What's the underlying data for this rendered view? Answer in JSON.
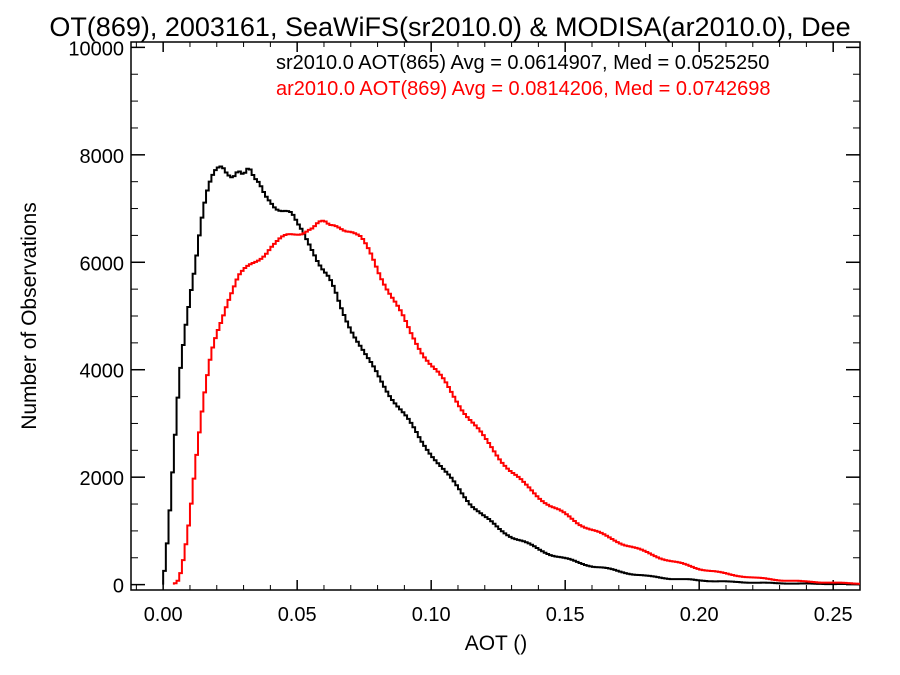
{
  "chart_data": {
    "type": "line",
    "title": "OT(869), 2003161, SeaWiFS(sr2010.0) & MODISA(ar2010.0), Dee",
    "xlabel": "AOT ()",
    "ylabel": "Number of Observations",
    "xlim": [
      -0.012,
      0.26
    ],
    "ylim": [
      -100,
      10100
    ],
    "x_ticks": [
      0.0,
      0.05,
      0.1,
      0.15,
      0.2,
      0.25
    ],
    "x_tick_labels": [
      "0.00",
      "0.05",
      "0.10",
      "0.15",
      "0.20",
      "0.25"
    ],
    "y_ticks": [
      0,
      2000,
      4000,
      6000,
      8000,
      10000
    ],
    "y_tick_labels": [
      "0",
      "2000",
      "4000",
      "6000",
      "8000",
      "10000"
    ],
    "grid": false,
    "series": [
      {
        "name": "sr2010.0 AOT(865)",
        "legend_text": "sr2010.0 AOT(865) Avg = 0.0614907, Med = 0.0525250",
        "color": "#000000",
        "x": [
          0.0,
          0.002,
          0.004,
          0.006,
          0.008,
          0.01,
          0.012,
          0.014,
          0.016,
          0.018,
          0.02,
          0.022,
          0.024,
          0.026,
          0.028,
          0.03,
          0.032,
          0.034,
          0.036,
          0.038,
          0.04,
          0.042,
          0.044,
          0.046,
          0.048,
          0.05,
          0.052,
          0.054,
          0.056,
          0.058,
          0.06,
          0.062,
          0.064,
          0.066,
          0.068,
          0.07,
          0.072,
          0.074,
          0.076,
          0.078,
          0.08,
          0.082,
          0.084,
          0.086,
          0.088,
          0.09,
          0.092,
          0.094,
          0.096,
          0.098,
          0.1,
          0.105,
          0.11,
          0.115,
          0.12,
          0.125,
          0.13,
          0.135,
          0.14,
          0.145,
          0.15,
          0.155,
          0.16,
          0.165,
          0.17,
          0.175,
          0.18,
          0.19,
          0.2,
          0.21,
          0.22,
          0.23,
          0.24,
          0.25,
          0.26
        ],
        "y": [
          0,
          1000,
          2400,
          3800,
          4700,
          5400,
          6000,
          6700,
          7200,
          7500,
          7700,
          7800,
          7700,
          7650,
          7750,
          7600,
          7700,
          7500,
          7450,
          7300,
          7200,
          7050,
          6950,
          6900,
          6850,
          6700,
          6600,
          6450,
          6250,
          6000,
          5800,
          5650,
          5450,
          5200,
          5000,
          4800,
          4600,
          4400,
          4200,
          4050,
          3900,
          3750,
          3600,
          3450,
          3300,
          3150,
          3000,
          2850,
          2700,
          2580,
          2450,
          2100,
          1800,
          1500,
          1250,
          1050,
          900,
          780,
          660,
          560,
          480,
          410,
          350,
          300,
          250,
          200,
          160,
          110,
          80,
          55,
          38,
          25,
          18,
          12,
          8
        ]
      },
      {
        "name": "ar2010.0 AOT(869)",
        "legend_text": "ar2010.0 AOT(869) Avg = 0.0814206, Med = 0.0742698",
        "color": "#ff0000",
        "x": [
          0.004,
          0.006,
          0.008,
          0.01,
          0.012,
          0.014,
          0.016,
          0.018,
          0.02,
          0.022,
          0.024,
          0.026,
          0.028,
          0.03,
          0.032,
          0.034,
          0.036,
          0.038,
          0.04,
          0.042,
          0.044,
          0.046,
          0.048,
          0.05,
          0.052,
          0.054,
          0.056,
          0.058,
          0.06,
          0.062,
          0.064,
          0.066,
          0.068,
          0.07,
          0.072,
          0.074,
          0.076,
          0.078,
          0.08,
          0.082,
          0.084,
          0.086,
          0.088,
          0.09,
          0.092,
          0.094,
          0.096,
          0.098,
          0.1,
          0.105,
          0.11,
          0.115,
          0.12,
          0.125,
          0.13,
          0.135,
          0.14,
          0.145,
          0.15,
          0.155,
          0.16,
          0.165,
          0.17,
          0.175,
          0.18,
          0.19,
          0.2,
          0.21,
          0.22,
          0.23,
          0.24,
          0.25,
          0.26
        ],
        "y": [
          0,
          100,
          600,
          1300,
          2200,
          3000,
          3700,
          4300,
          4700,
          5000,
          5300,
          5500,
          5700,
          5800,
          5900,
          6000,
          6100,
          6200,
          6300,
          6350,
          6400,
          6450,
          6500,
          6550,
          6600,
          6650,
          6650,
          6700,
          6700,
          6650,
          6700,
          6700,
          6650,
          6600,
          6500,
          6400,
          6250,
          6100,
          5900,
          5700,
          5500,
          5300,
          5100,
          4900,
          4700,
          4550,
          4400,
          4250,
          4100,
          3750,
          3400,
          3050,
          2700,
          2400,
          2100,
          1850,
          1650,
          1450,
          1300,
          1150,
          1020,
          900,
          800,
          700,
          600,
          430,
          300,
          200,
          130,
          85,
          55,
          35,
          20
        ]
      }
    ]
  }
}
